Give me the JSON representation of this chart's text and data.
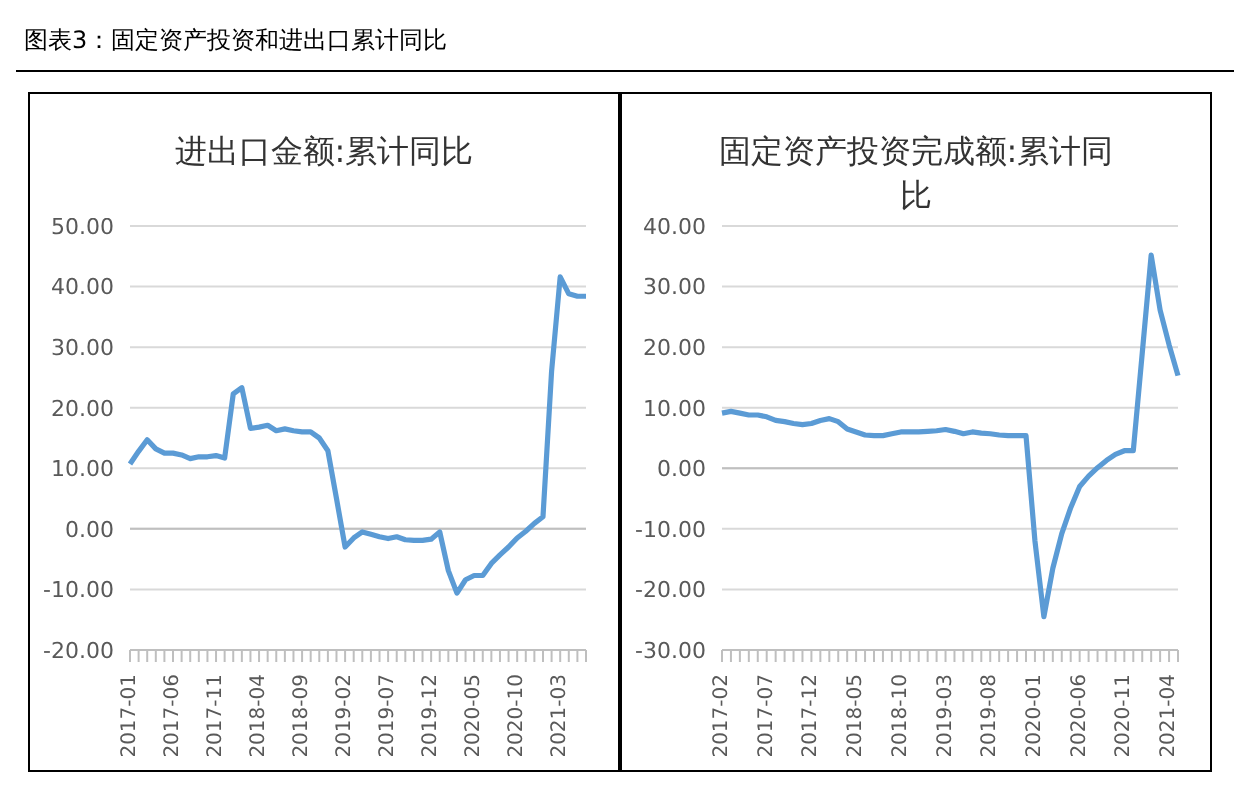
{
  "chart_data": [
    {
      "type": "line",
      "title": "进出口金额:累计同比",
      "annotations": [
        "图表3：固定资产投资和进出口累计同比"
      ],
      "categories": [
        "2017-01",
        null,
        null,
        null,
        null,
        "2017-06",
        null,
        null,
        null,
        null,
        "2017-11",
        null,
        null,
        null,
        null,
        "2018-04",
        null,
        null,
        null,
        null,
        "2018-09",
        null,
        null,
        null,
        null,
        "2019-02",
        null,
        null,
        null,
        null,
        "2019-07",
        null,
        null,
        null,
        null,
        "2019-12",
        null,
        null,
        null,
        null,
        "2020-05",
        null,
        null,
        null,
        null,
        "2020-10",
        null,
        null,
        null,
        null,
        "2021-03",
        null,
        null,
        null
      ],
      "series": [
        {
          "color": "#5b9bd5",
          "values": [
            10.7,
            12.8,
            14.7,
            13.2,
            12.5,
            12.5,
            12.2,
            11.6,
            11.9,
            11.9,
            12.1,
            11.7,
            22.3,
            23.3,
            16.6,
            16.8,
            17.1,
            16.2,
            16.5,
            16.2,
            16.0,
            16.0,
            15.0,
            12.9,
            5.0,
            -3.0,
            -1.5,
            -0.5,
            -0.9,
            -1.3,
            -1.6,
            -1.3,
            -1.8,
            -1.9,
            -1.9,
            -1.7,
            -0.5,
            -6.9,
            -10.6,
            -8.4,
            -7.7,
            -7.7,
            -5.7,
            -4.3,
            -3.0,
            -1.5,
            -0.4,
            0.9,
            2.0,
            26.0,
            41.6,
            38.8,
            38.4,
            38.4
          ]
        }
      ],
      "ylim": [
        -20,
        50
      ],
      "yticks": [
        {
          "value": -20,
          "label": "-20.00"
        },
        {
          "value": -10,
          "label": "-10.00"
        },
        {
          "value": 0,
          "label": "0.00"
        },
        {
          "value": 10,
          "label": "10.00"
        },
        {
          "value": 20,
          "label": "20.00"
        },
        {
          "value": 30,
          "label": "30.00"
        },
        {
          "value": 40,
          "label": "40.00"
        },
        {
          "value": 50,
          "label": "50.00"
        }
      ],
      "grid": "y",
      "legend": false,
      "marker": "none",
      "line_style": "solid"
    },
    {
      "type": "line",
      "title": "固定资产投资完成额:累计同比",
      "categories": [
        "2017-02",
        null,
        null,
        null,
        null,
        "2017-07",
        null,
        null,
        null,
        null,
        "2017-12",
        null,
        null,
        null,
        null,
        "2018-05",
        null,
        null,
        null,
        null,
        "2018-10",
        null,
        null,
        null,
        null,
        "2019-03",
        null,
        null,
        null,
        null,
        "2019-08",
        null,
        null,
        null,
        null,
        "2020-01",
        null,
        null,
        null,
        null,
        "2020-06",
        null,
        null,
        null,
        null,
        "2020-11",
        null,
        null,
        null,
        null,
        "2021-04",
        null
      ],
      "series": [
        {
          "color": "#5b9bd5",
          "values": [
            9.1,
            9.4,
            9.1,
            8.8,
            8.8,
            8.5,
            7.9,
            7.7,
            7.4,
            7.2,
            7.4,
            7.9,
            8.2,
            7.7,
            6.5,
            6.0,
            5.5,
            5.4,
            5.4,
            5.7,
            6.0,
            6.0,
            6.0,
            6.1,
            6.2,
            6.4,
            6.1,
            5.7,
            6.0,
            5.8,
            5.7,
            5.5,
            5.4,
            5.4,
            5.4,
            -12.0,
            -24.5,
            -16.5,
            -10.8,
            -6.5,
            -3.0,
            -1.3,
            0.1,
            1.3,
            2.3,
            2.9,
            2.9,
            19.0,
            35.2,
            26.1,
            20.4,
            15.3
          ]
        }
      ],
      "ylim": [
        -30,
        40
      ],
      "yticks": [
        {
          "value": -30,
          "label": "-30.00"
        },
        {
          "value": -20,
          "label": "-20.00"
        },
        {
          "value": -10,
          "label": "-10.00"
        },
        {
          "value": 0,
          "label": "0.00"
        },
        {
          "value": 10,
          "label": "10.00"
        },
        {
          "value": 20,
          "label": "20.00"
        },
        {
          "value": 30,
          "label": "30.00"
        },
        {
          "value": 40,
          "label": "40.00"
        }
      ],
      "grid": "y",
      "legend": false,
      "marker": "none",
      "line_style": "solid"
    }
  ]
}
